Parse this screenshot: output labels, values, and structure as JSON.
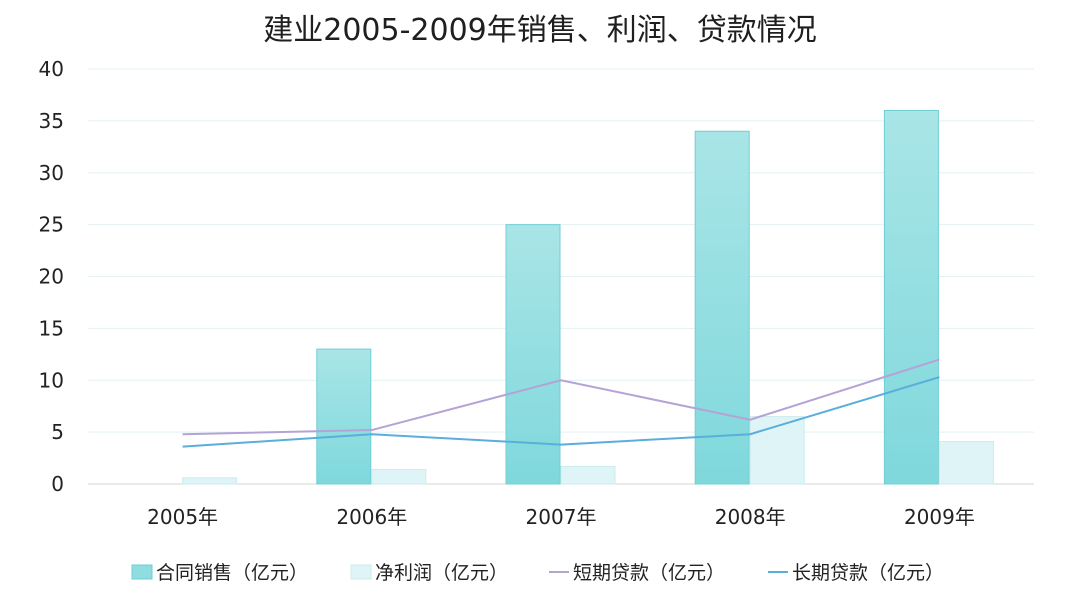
{
  "chart_data": {
    "type": "bar",
    "title": "建业2005-2009年销售、利润、贷款情况",
    "xlabel": "",
    "ylabel": "",
    "categories": [
      "2005年",
      "2006年",
      "2007年",
      "2008年",
      "2009年"
    ],
    "ylim": [
      0,
      40
    ],
    "yticks": [
      "0",
      "5",
      "10",
      "15",
      "20",
      "25",
      "30",
      "35",
      "40"
    ],
    "grid": true,
    "legend_position": "bottom",
    "series": [
      {
        "name": "合同销售（亿元）",
        "kind": "bar",
        "values": [
          0,
          13,
          25,
          34,
          36
        ],
        "color": "#8fdde0"
      },
      {
        "name": "净利润（亿元）",
        "kind": "bar",
        "values": [
          0.6,
          1.4,
          1.7,
          6.5,
          4.1
        ],
        "color": "#dff4f6"
      },
      {
        "name": "短期贷款（亿元）",
        "kind": "line",
        "values": [
          4.8,
          5.2,
          10,
          6.2,
          12
        ],
        "color": "#b4a3d6"
      },
      {
        "name": "长期贷款（亿元）",
        "kind": "line",
        "values": [
          3.6,
          4.8,
          3.8,
          4.8,
          10.3
        ],
        "color": "#5aaedb"
      }
    ]
  }
}
